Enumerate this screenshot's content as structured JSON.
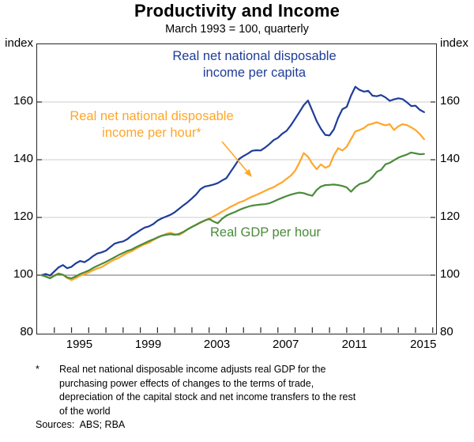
{
  "title": "Productivity and Income",
  "subtitle": "March 1993 = 100, quarterly",
  "y_axis": {
    "unit": "index",
    "ticks": [
      80,
      100,
      120,
      140,
      160
    ]
  },
  "x_axis": {
    "tick_label_years": [
      1995,
      1999,
      2003,
      2007,
      2011,
      2015
    ]
  },
  "annotations": {
    "per_capita": "Real net national disposable\nincome per capita",
    "per_hour": "Real net national disposable\nincome per hour*",
    "gdp_per_hour": "Real GDP per hour"
  },
  "footnote": {
    "marker": "*",
    "text": "Real net national disposable income adjusts real GDP for the\npurchasing power effects of changes to the terms of trade,\ndepreciation of the capital stock and net income transfers to the rest\nof the world"
  },
  "sources": "Sources:  ABS; RBA",
  "colors": {
    "blue": "#1F3D99",
    "orange": "#FFA629",
    "green": "#4A8B3B",
    "gridline": "#cccccc",
    "reference_line": "#6b6b6b",
    "axis": "#262626"
  },
  "chart_data": {
    "type": "line",
    "title": "Productivity and Income",
    "subtitle": "March 1993 = 100, quarterly",
    "ylabel": "index",
    "ylim": [
      80,
      180
    ],
    "xlim": [
      1993.0,
      2016.15
    ],
    "yticks": [
      80,
      100,
      120,
      140,
      160
    ],
    "gridlines": [
      120,
      140,
      160
    ],
    "reference_line": 100,
    "x": [
      1993.25,
      1993.5,
      1993.75,
      1994.0,
      1994.25,
      1994.5,
      1994.75,
      1995.0,
      1995.25,
      1995.5,
      1995.75,
      1996.0,
      1996.25,
      1996.5,
      1996.75,
      1997.0,
      1997.25,
      1997.5,
      1997.75,
      1998.0,
      1998.25,
      1998.5,
      1998.75,
      1999.0,
      1999.25,
      1999.5,
      1999.75,
      2000.0,
      2000.25,
      2000.5,
      2000.75,
      2001.0,
      2001.25,
      2001.5,
      2001.75,
      2002.0,
      2002.25,
      2002.5,
      2002.75,
      2003.0,
      2003.25,
      2003.5,
      2003.75,
      2004.0,
      2004.25,
      2004.5,
      2004.75,
      2005.0,
      2005.25,
      2005.5,
      2005.75,
      2006.0,
      2006.25,
      2006.5,
      2006.75,
      2007.0,
      2007.25,
      2007.5,
      2007.75,
      2008.0,
      2008.25,
      2008.5,
      2008.75,
      2009.0,
      2009.25,
      2009.5,
      2009.75,
      2010.0,
      2010.25,
      2010.5,
      2010.75,
      2011.0,
      2011.25,
      2011.5,
      2011.75,
      2012.0,
      2012.25,
      2012.5,
      2012.75,
      2013.0,
      2013.25,
      2013.5,
      2013.75,
      2014.0,
      2014.25,
      2014.5,
      2014.75,
      2015.0,
      2015.25,
      2015.5
    ],
    "series": [
      {
        "name": "Real net national disposable income per capita",
        "color": "#1F3D99",
        "values": [
          100.0,
          100.4,
          99.9,
          101.3,
          102.7,
          103.5,
          102.4,
          102.9,
          104.1,
          104.9,
          104.5,
          105.4,
          106.6,
          107.5,
          107.9,
          108.5,
          109.7,
          110.9,
          111.4,
          111.7,
          112.5,
          113.7,
          114.6,
          115.6,
          116.5,
          116.9,
          117.7,
          118.9,
          119.7,
          120.3,
          120.9,
          121.8,
          123.0,
          124.2,
          125.3,
          126.6,
          128.0,
          129.8,
          130.7,
          131.0,
          131.4,
          131.9,
          132.8,
          133.6,
          135.8,
          138.0,
          140.3,
          141.3,
          142.1,
          143.1,
          143.3,
          143.2,
          144.2,
          145.4,
          146.8,
          147.6,
          149.0,
          150.0,
          151.9,
          154.2,
          156.5,
          158.9,
          160.5,
          157.0,
          153.4,
          150.7,
          148.6,
          148.4,
          150.5,
          154.5,
          157.5,
          158.3,
          162.2,
          165.3,
          164.2,
          163.6,
          163.9,
          162.2,
          162.0,
          162.4,
          161.6,
          160.4,
          160.9,
          161.3,
          161.0,
          159.9,
          158.6,
          158.7,
          157.3,
          156.5
        ]
      },
      {
        "name": "Real net national disposable income per hour",
        "color": "#FFA629",
        "values": [
          100.0,
          99.6,
          99.0,
          100.0,
          100.6,
          100.2,
          99.0,
          98.3,
          99.0,
          99.8,
          100.3,
          100.9,
          101.7,
          102.3,
          102.8,
          103.7,
          104.6,
          105.4,
          106.0,
          106.9,
          107.7,
          108.3,
          109.2,
          110.0,
          110.7,
          111.2,
          112.2,
          113.0,
          113.6,
          114.3,
          114.7,
          114.2,
          113.9,
          114.8,
          115.9,
          116.7,
          117.4,
          118.2,
          118.9,
          119.5,
          120.3,
          121.1,
          122.0,
          122.8,
          123.7,
          124.4,
          125.2,
          125.7,
          126.5,
          127.2,
          127.8,
          128.5,
          129.2,
          129.9,
          130.5,
          131.4,
          132.2,
          133.4,
          134.5,
          136.2,
          139.0,
          142.3,
          141.0,
          138.6,
          136.7,
          138.4,
          137.2,
          137.9,
          141.5,
          144.0,
          143.2,
          144.5,
          147.1,
          149.8,
          150.3,
          151.0,
          152.1,
          152.5,
          153.0,
          152.4,
          151.9,
          152.3,
          150.3,
          151.6,
          152.3,
          152.0,
          151.2,
          150.3,
          148.9,
          147.1
        ]
      },
      {
        "name": "Real GDP per hour",
        "color": "#4A8B3B",
        "values": [
          100.0,
          99.5,
          98.9,
          99.8,
          100.5,
          100.1,
          99.2,
          98.9,
          99.6,
          100.4,
          101.0,
          101.6,
          102.5,
          103.2,
          103.9,
          104.6,
          105.4,
          106.2,
          107.0,
          107.7,
          108.4,
          108.9,
          109.7,
          110.4,
          111.1,
          111.8,
          112.4,
          113.1,
          113.7,
          114.0,
          114.2,
          114.0,
          114.3,
          115.0,
          115.9,
          116.7,
          117.5,
          118.3,
          119.0,
          119.5,
          118.6,
          118.0,
          119.5,
          120.6,
          121.3,
          121.9,
          122.6,
          123.2,
          123.7,
          124.1,
          124.3,
          124.5,
          124.6,
          124.9,
          125.5,
          126.2,
          126.8,
          127.4,
          127.9,
          128.3,
          128.6,
          128.4,
          127.9,
          127.5,
          129.5,
          130.7,
          131.2,
          131.3,
          131.4,
          131.2,
          130.9,
          130.4,
          128.9,
          130.5,
          131.6,
          132.0,
          132.6,
          134.0,
          135.8,
          136.5,
          138.4,
          138.9,
          139.8,
          140.7,
          141.3,
          141.8,
          142.5,
          142.2,
          141.9,
          142.0
        ]
      }
    ]
  }
}
